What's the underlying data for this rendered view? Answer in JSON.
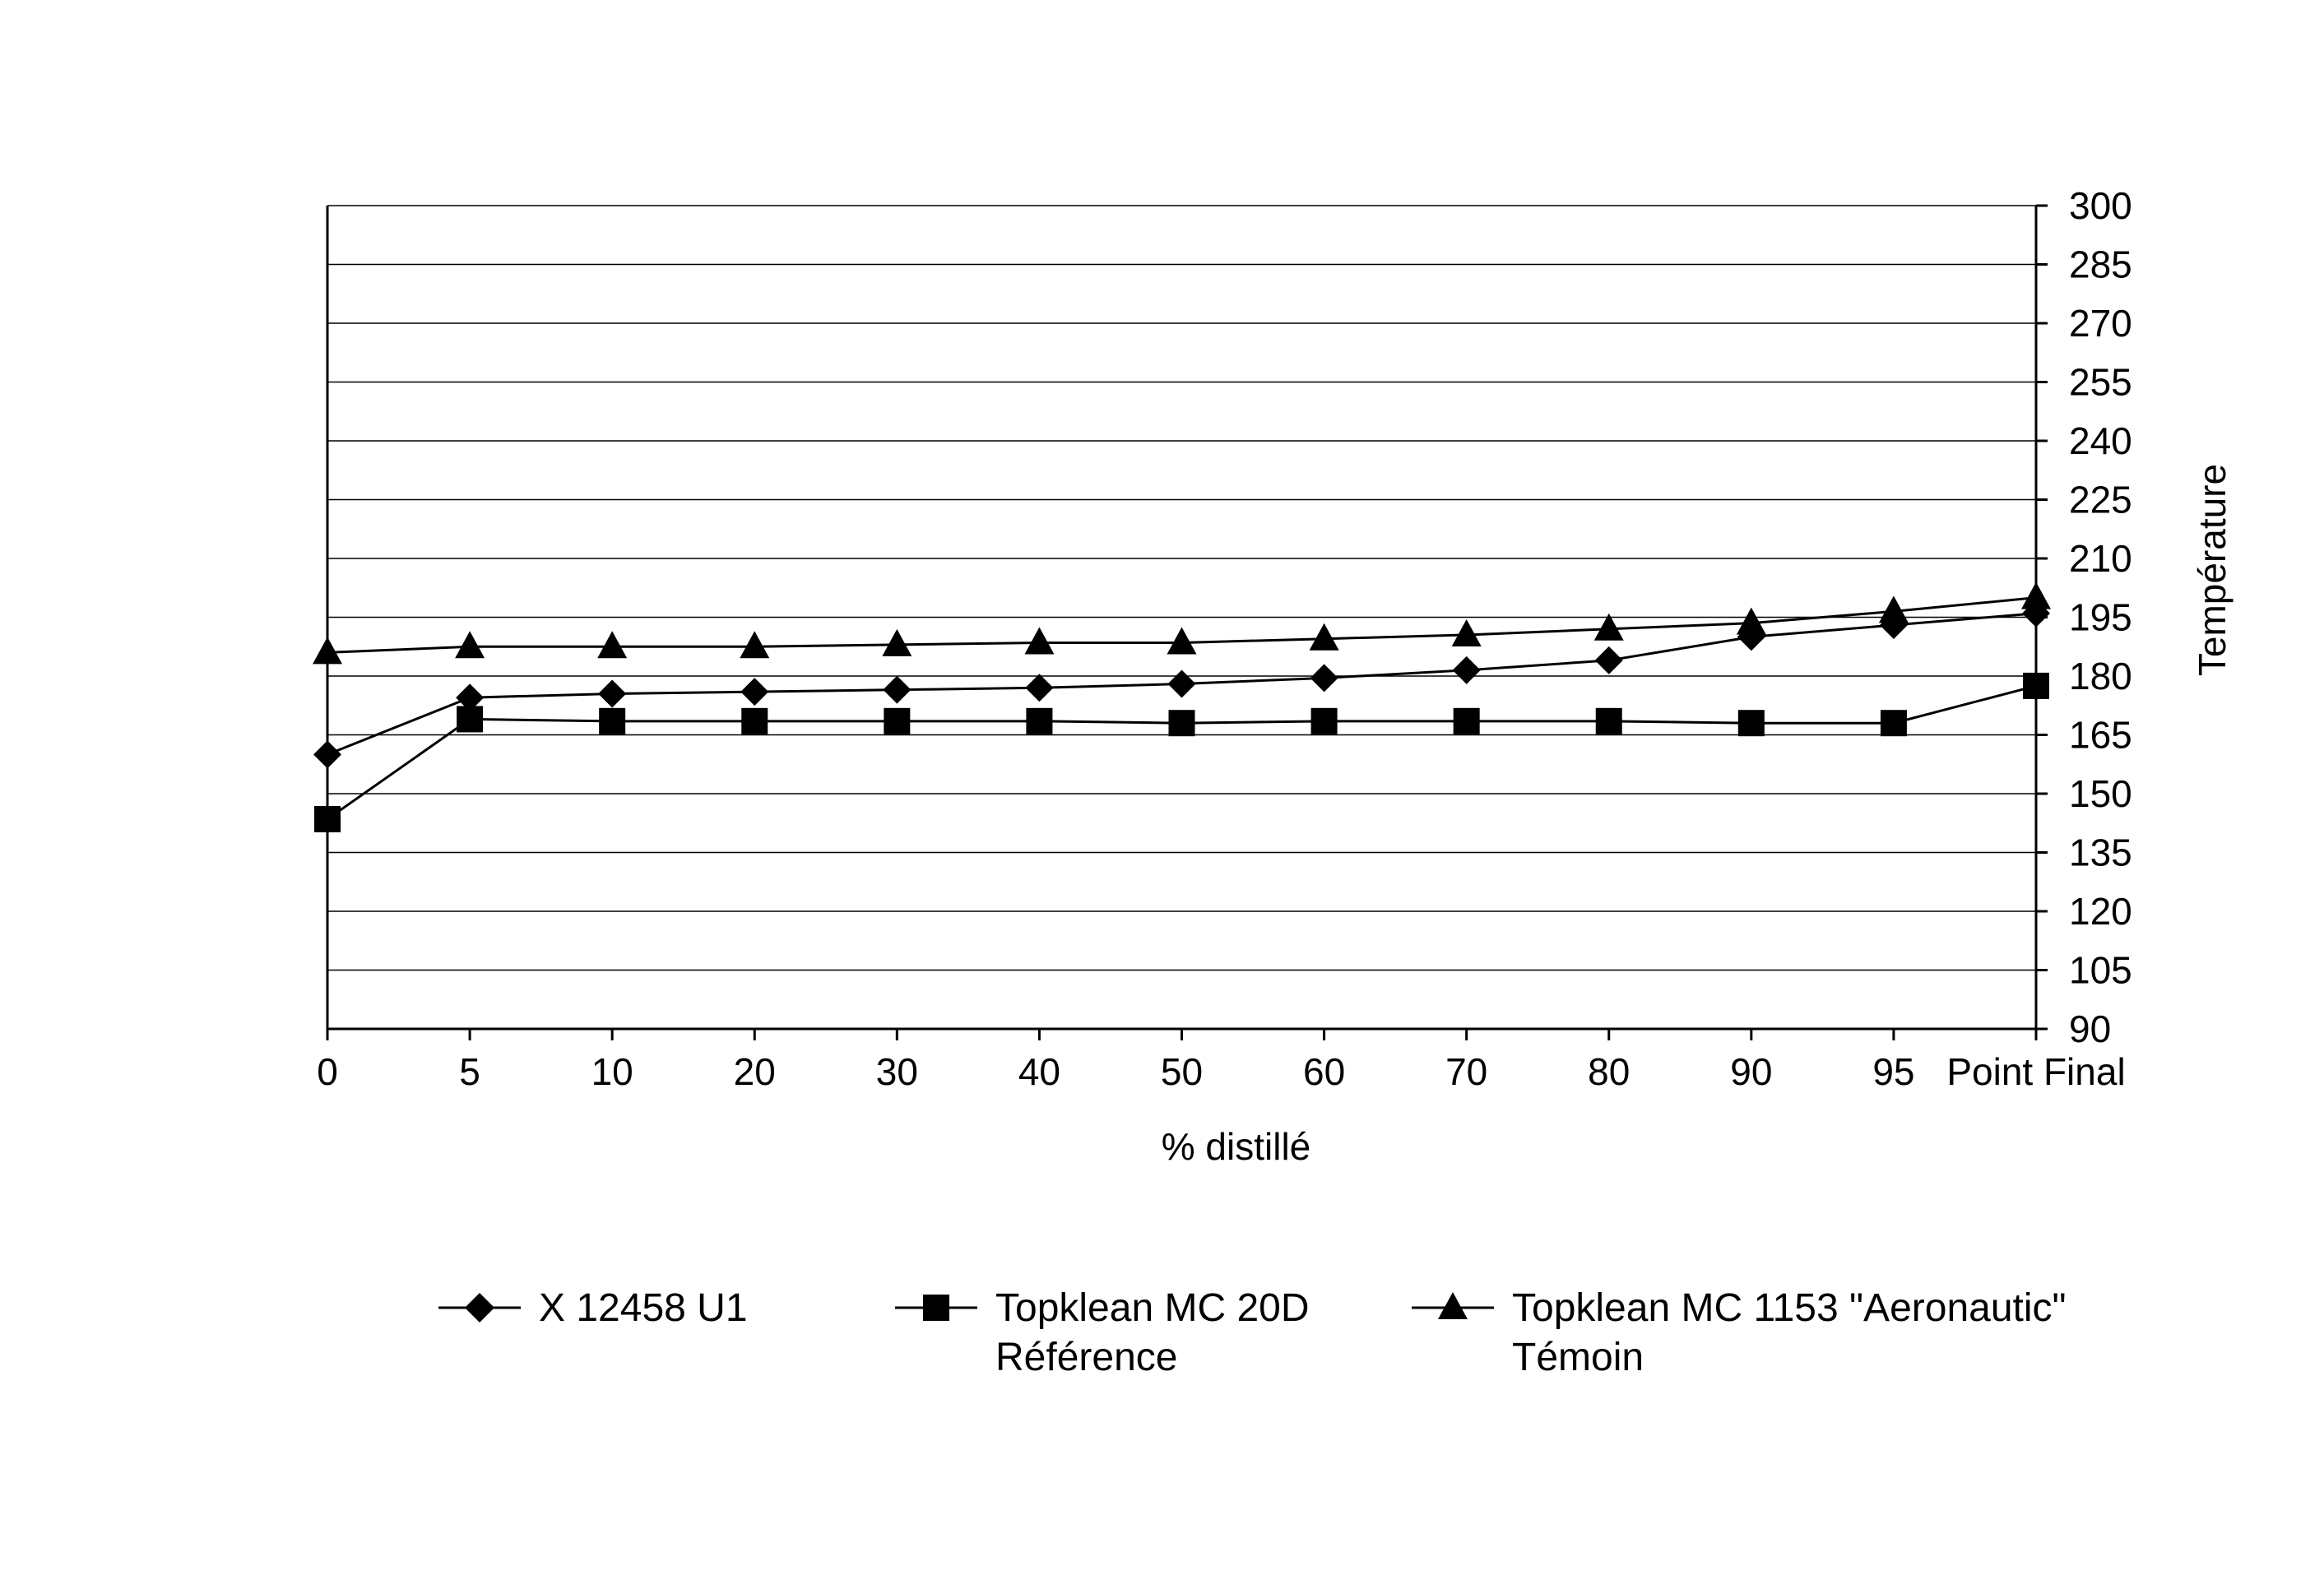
{
  "chart_data": {
    "type": "line",
    "title": "",
    "xlabel": "% distillé",
    "ylabel": "Température",
    "categories": [
      "0",
      "5",
      "10",
      "20",
      "30",
      "40",
      "50",
      "60",
      "70",
      "80",
      "90",
      "95",
      "Point Final"
    ],
    "ylim": [
      90,
      300
    ],
    "yticks": [
      90,
      105,
      120,
      135,
      150,
      165,
      180,
      195,
      210,
      225,
      240,
      255,
      270,
      285,
      300
    ],
    "y_axis_side": "right",
    "grid": "horizontal",
    "legend_position": "bottom",
    "series": [
      {
        "name": "X 12458 U1",
        "marker": "diamond",
        "values": [
          160,
          174.5,
          175.5,
          176,
          176.5,
          177,
          178,
          179.5,
          181.5,
          184,
          190,
          193,
          196
        ]
      },
      {
        "name": "Topklean MC 20D",
        "name_line2": "Référence",
        "marker": "square",
        "values": [
          143.5,
          169,
          168.5,
          168.5,
          168.5,
          168.5,
          168,
          168.5,
          168.5,
          168.5,
          168,
          168,
          177.5
        ]
      },
      {
        "name": "Topklean MC 1153 \"Aeronautic\"",
        "name_line2": "Témoin",
        "marker": "triangle",
        "values": [
          186,
          187.5,
          187.5,
          187.5,
          188,
          188.5,
          188.5,
          189.5,
          190.5,
          192,
          193.5,
          196.5,
          200
        ]
      }
    ]
  }
}
